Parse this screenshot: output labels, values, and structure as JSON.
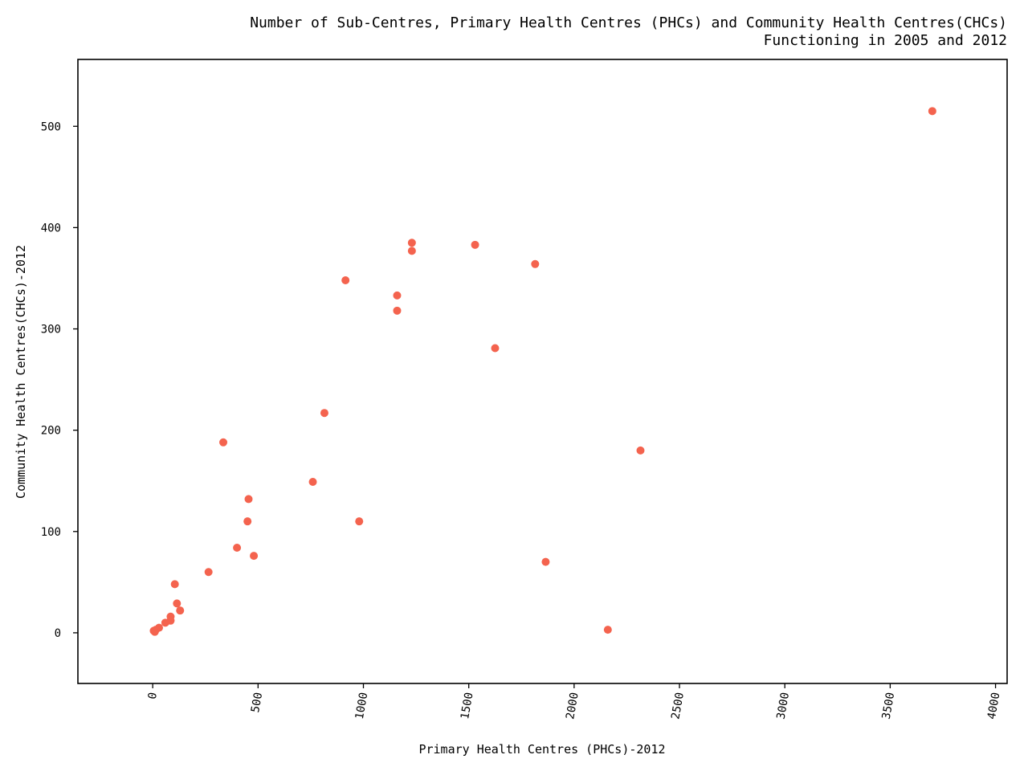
{
  "chart_data": {
    "type": "scatter",
    "title_line1": "Number of Sub-Centres, Primary Health Centres (PHCs) and Community Health Centres(CHCs)",
    "title_line2": "Functioning in 2005 and 2012",
    "xlabel": "Primary Health Centres (PHCs)-2012",
    "ylabel": "Community Health Centres(CHCs)-2012",
    "xlim": [
      -355,
      4055
    ],
    "ylim": [
      -50,
      566
    ],
    "xticks": [
      0,
      500,
      1000,
      1500,
      2000,
      2500,
      3000,
      3500,
      4000
    ],
    "yticks": [
      0,
      100,
      200,
      300,
      400,
      500
    ],
    "grid": false,
    "marker_color": "#f4634e",
    "points": [
      {
        "x": 3700,
        "y": 515
      },
      {
        "x": 1230,
        "y": 385
      },
      {
        "x": 1230,
        "y": 377
      },
      {
        "x": 1530,
        "y": 383
      },
      {
        "x": 1815,
        "y": 364
      },
      {
        "x": 915,
        "y": 348
      },
      {
        "x": 1160,
        "y": 333
      },
      {
        "x": 1160,
        "y": 318
      },
      {
        "x": 1625,
        "y": 281
      },
      {
        "x": 815,
        "y": 217
      },
      {
        "x": 335,
        "y": 188
      },
      {
        "x": 2315,
        "y": 180
      },
      {
        "x": 760,
        "y": 149
      },
      {
        "x": 455,
        "y": 132
      },
      {
        "x": 450,
        "y": 110
      },
      {
        "x": 980,
        "y": 110
      },
      {
        "x": 400,
        "y": 84
      },
      {
        "x": 480,
        "y": 76
      },
      {
        "x": 1865,
        "y": 70
      },
      {
        "x": 265,
        "y": 60
      },
      {
        "x": 105,
        "y": 48
      },
      {
        "x": 115,
        "y": 29
      },
      {
        "x": 130,
        "y": 22
      },
      {
        "x": 85,
        "y": 16
      },
      {
        "x": 85,
        "y": 12
      },
      {
        "x": 60,
        "y": 10
      },
      {
        "x": 30,
        "y": 5
      },
      {
        "x": 15,
        "y": 3
      },
      {
        "x": 5,
        "y": 2
      },
      {
        "x": 10,
        "y": 1
      },
      {
        "x": 2160,
        "y": 3
      }
    ]
  }
}
